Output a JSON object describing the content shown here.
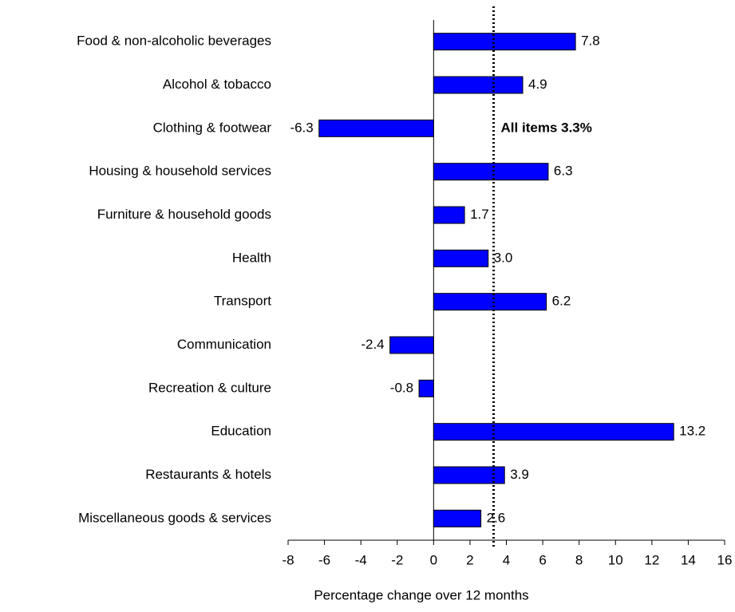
{
  "chart_data": {
    "type": "bar",
    "orientation": "horizontal",
    "categories": [
      "Food & non-alcoholic beverages",
      "Alcohol & tobacco",
      "Clothing & footwear",
      "Housing & household services",
      "Furniture & household goods",
      "Health",
      "Transport",
      "Communication",
      "Recreation & culture",
      "Education",
      "Restaurants & hotels",
      "Miscellaneous goods & services"
    ],
    "values": [
      7.8,
      4.9,
      -6.3,
      6.3,
      1.7,
      3.0,
      6.2,
      -2.4,
      -0.8,
      13.2,
      3.9,
      2.6
    ],
    "value_labels": [
      "7.8",
      "4.9",
      "-6.3",
      "6.3",
      "1.7",
      "3.0",
      "6.2",
      "-2.4",
      "-0.8",
      "13.2",
      "3.9",
      "2.6"
    ],
    "color": "#0000ff",
    "xlim": [
      -8,
      16
    ],
    "xticks": [
      -8,
      -6,
      -4,
      -2,
      0,
      2,
      4,
      6,
      8,
      10,
      12,
      14,
      16
    ],
    "xlabel": "Percentage change over 12 months",
    "reference_line": {
      "value": 3.3,
      "label": "All items 3.3%"
    }
  }
}
